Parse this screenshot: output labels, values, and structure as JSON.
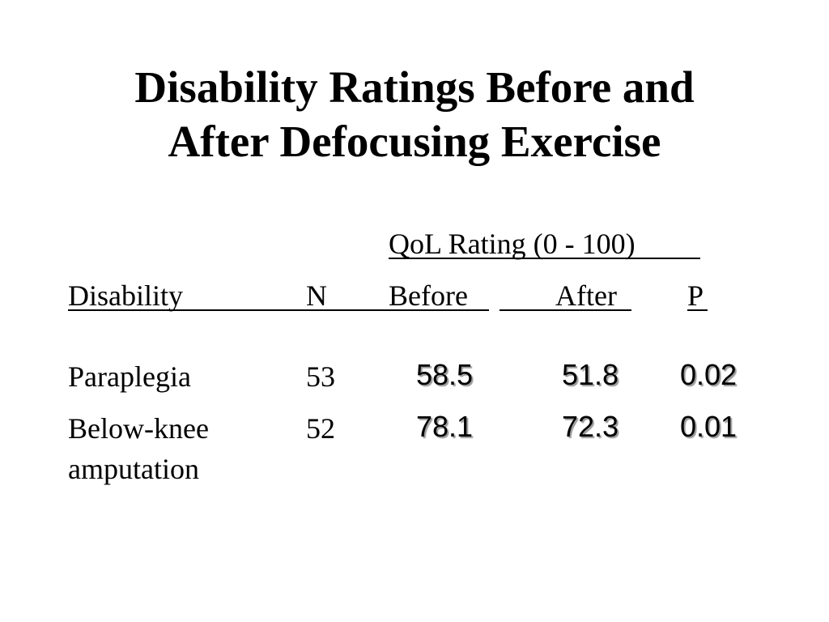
{
  "slide": {
    "title_line1": "Disability Ratings Before and",
    "title_line2": "After Defocusing Exercise"
  },
  "table": {
    "group_header": "QoL Rating (0 - 100)",
    "columns": {
      "disability": "Disability",
      "n": "N",
      "before": "Before",
      "after": "After",
      "p": "P"
    },
    "rows": [
      {
        "disability_line1": "Paraplegia",
        "disability_line2": "",
        "n": "53",
        "before": "58.5",
        "after": "51.8",
        "p": "0.02"
      },
      {
        "disability_line1": "Below-knee",
        "disability_line2": "amputation",
        "n": "52",
        "before": "78.1",
        "after": "72.3",
        "p": "0.01"
      }
    ]
  }
}
